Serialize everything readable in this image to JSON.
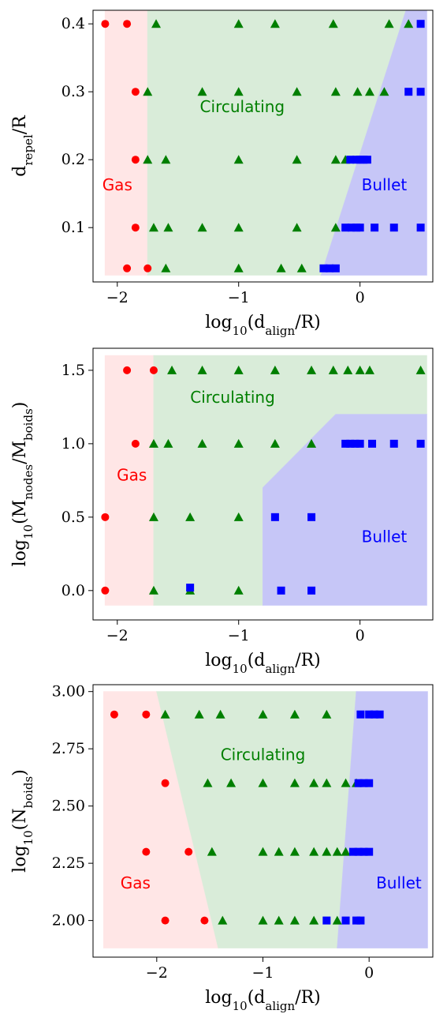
{
  "chart_data": [
    {
      "type": "scatter",
      "xlabel": "log10(d_align/R)",
      "ylabel": "d_repel/R",
      "xlim": [
        -2.2,
        0.6
      ],
      "ylim": [
        0.02,
        0.42
      ],
      "xticks": [
        -2,
        -1,
        0
      ],
      "xtick_labels": [
        "−2",
        "−1",
        "0"
      ],
      "yticks": [
        0.1,
        0.2,
        0.3,
        0.4
      ],
      "ytick_labels": [
        "0.1",
        "0.2",
        "0.3",
        "0.4"
      ],
      "ylabel_parts": [
        {
          "t": "d"
        },
        {
          "t": "repel",
          "sub": true
        },
        {
          "t": "/R"
        }
      ],
      "regions": [
        {
          "name": "Gas",
          "color": "#ffe6e6",
          "points": [
            [
              -2.1,
              0.03
            ],
            [
              -1.75,
              0.03
            ],
            [
              -1.75,
              0.42
            ],
            [
              -2.1,
              0.42
            ]
          ]
        },
        {
          "name": "Circulating",
          "color": "#d9ecd9",
          "points": [
            [
              -1.75,
              0.03
            ],
            [
              -0.32,
              0.03
            ],
            [
              0.38,
              0.42
            ],
            [
              -1.75,
              0.42
            ]
          ]
        },
        {
          "name": "Bullet",
          "color": "#c6c6f7",
          "points": [
            [
              -0.32,
              0.03
            ],
            [
              0.55,
              0.03
            ],
            [
              0.55,
              0.42
            ],
            [
              0.38,
              0.42
            ]
          ]
        }
      ],
      "region_labels": [
        {
          "text": "Gas",
          "x": -2.0,
          "y": 0.155,
          "color": "#ff0000"
        },
        {
          "text": "Circulating",
          "x": -0.97,
          "y": 0.27,
          "color": "#007f00"
        },
        {
          "text": "Bullet",
          "x": 0.2,
          "y": 0.155,
          "color": "#0000ff"
        }
      ],
      "series": [
        {
          "name": "Gas",
          "marker": "circle",
          "color": "#ff0000",
          "points": [
            [
              -2.1,
              0.4
            ],
            [
              -1.92,
              0.4
            ],
            [
              -1.85,
              0.3
            ],
            [
              -1.85,
              0.2
            ],
            [
              -1.85,
              0.1
            ],
            [
              -1.92,
              0.04
            ],
            [
              -1.75,
              0.04
            ]
          ]
        },
        {
          "name": "Circulating",
          "marker": "triangle",
          "color": "#007f00",
          "points": [
            [
              -1.68,
              0.4
            ],
            [
              -1.0,
              0.4
            ],
            [
              -0.7,
              0.4
            ],
            [
              -0.22,
              0.4
            ],
            [
              0.24,
              0.4
            ],
            [
              0.4,
              0.4
            ],
            [
              -1.75,
              0.3
            ],
            [
              -1.3,
              0.3
            ],
            [
              -1.0,
              0.3
            ],
            [
              -0.52,
              0.3
            ],
            [
              -0.2,
              0.3
            ],
            [
              -0.02,
              0.3
            ],
            [
              0.08,
              0.3
            ],
            [
              0.2,
              0.3
            ],
            [
              -1.75,
              0.2
            ],
            [
              -1.6,
              0.2
            ],
            [
              -1.0,
              0.2
            ],
            [
              -0.52,
              0.2
            ],
            [
              -0.2,
              0.2
            ],
            [
              -0.12,
              0.2
            ],
            [
              -1.7,
              0.1
            ],
            [
              -1.58,
              0.1
            ],
            [
              -1.3,
              0.1
            ],
            [
              -1.0,
              0.1
            ],
            [
              -0.52,
              0.1
            ],
            [
              -0.2,
              0.1
            ],
            [
              -1.6,
              0.04
            ],
            [
              -1.0,
              0.04
            ],
            [
              -0.65,
              0.04
            ],
            [
              -0.48,
              0.04
            ]
          ]
        },
        {
          "name": "Bullet",
          "marker": "square",
          "color": "#0000ff",
          "points": [
            [
              0.5,
              0.4
            ],
            [
              0.4,
              0.3
            ],
            [
              0.5,
              0.3
            ],
            [
              -0.08,
              0.2
            ],
            [
              -0.03,
              0.2
            ],
            [
              0.0,
              0.2
            ],
            [
              0.03,
              0.2
            ],
            [
              0.06,
              0.2
            ],
            [
              -0.12,
              0.1
            ],
            [
              -0.07,
              0.1
            ],
            [
              -0.03,
              0.1
            ],
            [
              0.0,
              0.1
            ],
            [
              0.12,
              0.1
            ],
            [
              0.28,
              0.1
            ],
            [
              0.5,
              0.1
            ],
            [
              -0.3,
              0.04
            ],
            [
              -0.25,
              0.04
            ],
            [
              -0.2,
              0.04
            ]
          ]
        }
      ]
    },
    {
      "type": "scatter",
      "xlabel": "log10(d_align/R)",
      "ylabel": "log10(M_nodes/M_boids)",
      "xlim": [
        -2.2,
        0.6
      ],
      "ylim": [
        -0.2,
        1.65
      ],
      "xticks": [
        -2,
        -1,
        0
      ],
      "xtick_labels": [
        "−2",
        "−1",
        "0"
      ],
      "yticks": [
        0.0,
        0.5,
        1.0,
        1.5
      ],
      "ytick_labels": [
        "0.0",
        "0.5",
        "1.0",
        "1.5"
      ],
      "ylabel_parts": [
        {
          "t": "log"
        },
        {
          "t": "10",
          "sub": true
        },
        {
          "t": "(M"
        },
        {
          "t": "nodes",
          "sub": true
        },
        {
          "t": "/M"
        },
        {
          "t": "boids",
          "sub": true
        },
        {
          "t": ")"
        }
      ],
      "regions": [
        {
          "name": "Gas",
          "color": "#ffe6e6",
          "points": [
            [
              -2.1,
              -0.1
            ],
            [
              -1.7,
              -0.1
            ],
            [
              -1.7,
              1.6
            ],
            [
              -2.1,
              1.6
            ]
          ]
        },
        {
          "name": "Circulating",
          "color": "#d9ecd9",
          "points": [
            [
              -1.7,
              -0.1
            ],
            [
              -0.8,
              -0.1
            ],
            [
              -0.8,
              0.7
            ],
            [
              -0.2,
              1.2
            ],
            [
              0.55,
              1.2
            ],
            [
              0.55,
              1.6
            ],
            [
              -1.7,
              1.6
            ]
          ]
        },
        {
          "name": "Bullet",
          "color": "#c6c6f7",
          "points": [
            [
              -0.8,
              -0.1
            ],
            [
              0.55,
              -0.1
            ],
            [
              0.55,
              1.2
            ],
            [
              -0.2,
              1.2
            ],
            [
              -0.8,
              0.7
            ]
          ]
        }
      ],
      "region_labels": [
        {
          "text": "Gas",
          "x": -1.88,
          "y": 0.75,
          "color": "#ff0000"
        },
        {
          "text": "Circulating",
          "x": -1.05,
          "y": 1.28,
          "color": "#007f00"
        },
        {
          "text": "Bullet",
          "x": 0.2,
          "y": 0.33,
          "color": "#0000ff"
        }
      ],
      "series": [
        {
          "name": "Gas",
          "marker": "circle",
          "color": "#ff0000",
          "points": [
            [
              -1.92,
              1.5
            ],
            [
              -1.7,
              1.5
            ],
            [
              -1.85,
              1.0
            ],
            [
              -2.1,
              0.5
            ],
            [
              -2.1,
              0.0
            ]
          ]
        },
        {
          "name": "Circulating",
          "marker": "triangle",
          "color": "#007f00",
          "points": [
            [
              -1.55,
              1.5
            ],
            [
              -1.3,
              1.5
            ],
            [
              -1.0,
              1.5
            ],
            [
              -0.7,
              1.5
            ],
            [
              -0.4,
              1.5
            ],
            [
              -0.22,
              1.5
            ],
            [
              -0.1,
              1.5
            ],
            [
              0.0,
              1.5
            ],
            [
              0.08,
              1.5
            ],
            [
              0.5,
              1.5
            ],
            [
              -1.7,
              1.0
            ],
            [
              -1.58,
              1.0
            ],
            [
              -1.3,
              1.0
            ],
            [
              -1.0,
              1.0
            ],
            [
              -0.7,
              1.0
            ],
            [
              -0.4,
              1.0
            ],
            [
              -1.7,
              0.5
            ],
            [
              -1.4,
              0.5
            ],
            [
              -1.0,
              0.5
            ],
            [
              -1.7,
              0.0
            ],
            [
              -1.4,
              0.0
            ],
            [
              -1.0,
              0.0
            ]
          ]
        },
        {
          "name": "Bullet",
          "marker": "square",
          "color": "#0000ff",
          "points": [
            [
              -0.12,
              1.0
            ],
            [
              -0.08,
              1.0
            ],
            [
              -0.04,
              1.0
            ],
            [
              0.0,
              1.0
            ],
            [
              0.1,
              1.0
            ],
            [
              0.28,
              1.0
            ],
            [
              0.5,
              1.0
            ],
            [
              -0.7,
              0.5
            ],
            [
              -0.4,
              0.5
            ],
            [
              -1.4,
              0.02
            ],
            [
              -0.65,
              0.0
            ],
            [
              -0.4,
              0.0
            ]
          ]
        }
      ]
    },
    {
      "type": "scatter",
      "xlabel": "log10(d_align/R)",
      "ylabel": "log10(N_boids)",
      "xlim": [
        -2.6,
        0.6
      ],
      "ylim": [
        1.84,
        3.03
      ],
      "xticks": [
        -2,
        -1,
        0
      ],
      "xtick_labels": [
        "−2",
        "−1",
        "0"
      ],
      "yticks": [
        2.0,
        2.25,
        2.5,
        2.75,
        3.0
      ],
      "ytick_labels": [
        "2.00",
        "2.25",
        "2.50",
        "2.75",
        "3.00"
      ],
      "ylabel_parts": [
        {
          "t": "log"
        },
        {
          "t": "10",
          "sub": true
        },
        {
          "t": "(N"
        },
        {
          "t": "boids",
          "sub": true
        },
        {
          "t": ")"
        }
      ],
      "regions": [
        {
          "name": "Gas",
          "color": "#ffe6e6",
          "points": [
            [
              -2.5,
              1.88
            ],
            [
              -1.42,
              1.88
            ],
            [
              -2.0,
              3.0
            ],
            [
              -2.5,
              3.0
            ]
          ]
        },
        {
          "name": "Circulating",
          "color": "#d9ecd9",
          "points": [
            [
              -1.42,
              1.88
            ],
            [
              -0.3,
              1.88
            ],
            [
              -0.12,
              3.0
            ],
            [
              -2.0,
              3.0
            ]
          ]
        },
        {
          "name": "Bullet",
          "color": "#c6c6f7",
          "points": [
            [
              -0.3,
              1.88
            ],
            [
              0.55,
              1.88
            ],
            [
              0.55,
              3.0
            ],
            [
              -0.12,
              3.0
            ]
          ]
        }
      ],
      "region_labels": [
        {
          "text": "Gas",
          "x": -2.2,
          "y": 2.14,
          "color": "#ff0000"
        },
        {
          "text": "Circulating",
          "x": -1.0,
          "y": 2.7,
          "color": "#007f00"
        },
        {
          "text": "Bullet",
          "x": 0.28,
          "y": 2.14,
          "color": "#0000ff"
        }
      ],
      "series": [
        {
          "name": "Gas",
          "marker": "circle",
          "color": "#ff0000",
          "points": [
            [
              -2.4,
              2.9
            ],
            [
              -2.1,
              2.9
            ],
            [
              -1.92,
              2.6
            ],
            [
              -2.1,
              2.3
            ],
            [
              -1.7,
              2.3
            ],
            [
              -1.92,
              2.0
            ],
            [
              -1.55,
              2.0
            ]
          ]
        },
        {
          "name": "Circulating",
          "marker": "triangle",
          "color": "#007f00",
          "points": [
            [
              -1.92,
              2.9
            ],
            [
              -1.6,
              2.9
            ],
            [
              -1.4,
              2.9
            ],
            [
              -1.0,
              2.9
            ],
            [
              -0.7,
              2.9
            ],
            [
              -0.4,
              2.9
            ],
            [
              -1.52,
              2.6
            ],
            [
              -1.3,
              2.6
            ],
            [
              -1.0,
              2.6
            ],
            [
              -0.7,
              2.6
            ],
            [
              -0.52,
              2.6
            ],
            [
              -0.4,
              2.6
            ],
            [
              -0.22,
              2.6
            ],
            [
              -0.12,
              2.6
            ],
            [
              -1.48,
              2.3
            ],
            [
              -1.0,
              2.3
            ],
            [
              -0.85,
              2.3
            ],
            [
              -0.7,
              2.3
            ],
            [
              -0.52,
              2.3
            ],
            [
              -0.4,
              2.3
            ],
            [
              -0.3,
              2.3
            ],
            [
              -0.22,
              2.3
            ],
            [
              -1.38,
              2.0
            ],
            [
              -1.0,
              2.0
            ],
            [
              -0.85,
              2.0
            ],
            [
              -0.7,
              2.0
            ],
            [
              -0.52,
              2.0
            ],
            [
              -0.3,
              2.0
            ]
          ]
        },
        {
          "name": "Bullet",
          "marker": "square",
          "color": "#0000ff",
          "points": [
            [
              -0.08,
              2.9
            ],
            [
              0.0,
              2.9
            ],
            [
              0.05,
              2.9
            ],
            [
              0.1,
              2.9
            ],
            [
              -0.1,
              2.6
            ],
            [
              -0.05,
              2.6
            ],
            [
              0.0,
              2.6
            ],
            [
              -0.15,
              2.3
            ],
            [
              -0.1,
              2.3
            ],
            [
              -0.05,
              2.3
            ],
            [
              0.0,
              2.3
            ],
            [
              -0.4,
              2.0
            ],
            [
              -0.22,
              2.0
            ],
            [
              -0.12,
              2.0
            ],
            [
              -0.08,
              2.0
            ]
          ]
        }
      ]
    }
  ]
}
